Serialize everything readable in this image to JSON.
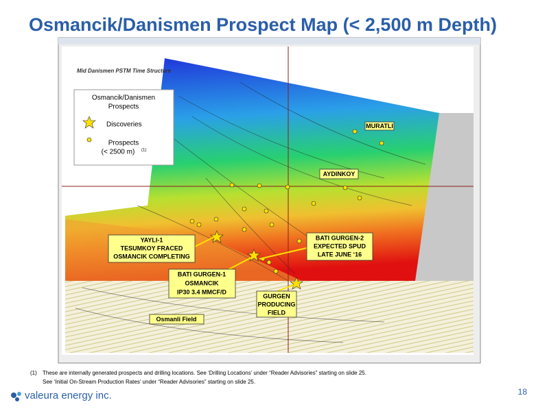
{
  "title": "Osmancik/Danismen Prospect Map (< 2,500 m Depth)",
  "map": {
    "header": "Mid Danismen PSTM Time Structure",
    "legend": {
      "title": [
        "Osmancik/Danismen",
        "Prospects"
      ],
      "discoveries": "Discoveries",
      "prospects": [
        "Prospects",
        "(< 2500 m)"
      ],
      "prospects_note": "(1)"
    },
    "labels": {
      "muratli": "MURATLI",
      "aydinkoy": "AYDINKOY",
      "yayli": [
        "YAYLI-1",
        "TESUMKOY FRACED",
        "OSMANCIK COMPLETING"
      ],
      "bati_gurgen_2": [
        "BATI GURGEN-2",
        "EXPECTED SPUD",
        "LATE JUNE ‘16"
      ],
      "bati_gurgen_1": [
        "BATI GURGEN-1",
        "OSMANCIK",
        "IP30 3.4 MMCF/D"
      ],
      "gurgen": [
        "GURGEN",
        "PRODUCING",
        "FIELD"
      ],
      "osmanli": "Osmanli Field"
    }
  },
  "footnotes": [
    "(1)",
    "These are internally generated prospects and drilling locations. See ‘Drilling Locations’ under “Reader Advisories” starting on slide 25.",
    "See ‘Initial On-Stream Production Rates’ under “Reader Advisories” starting on slide 25."
  ],
  "logo": "valeura energy inc.",
  "page_number": "18"
}
